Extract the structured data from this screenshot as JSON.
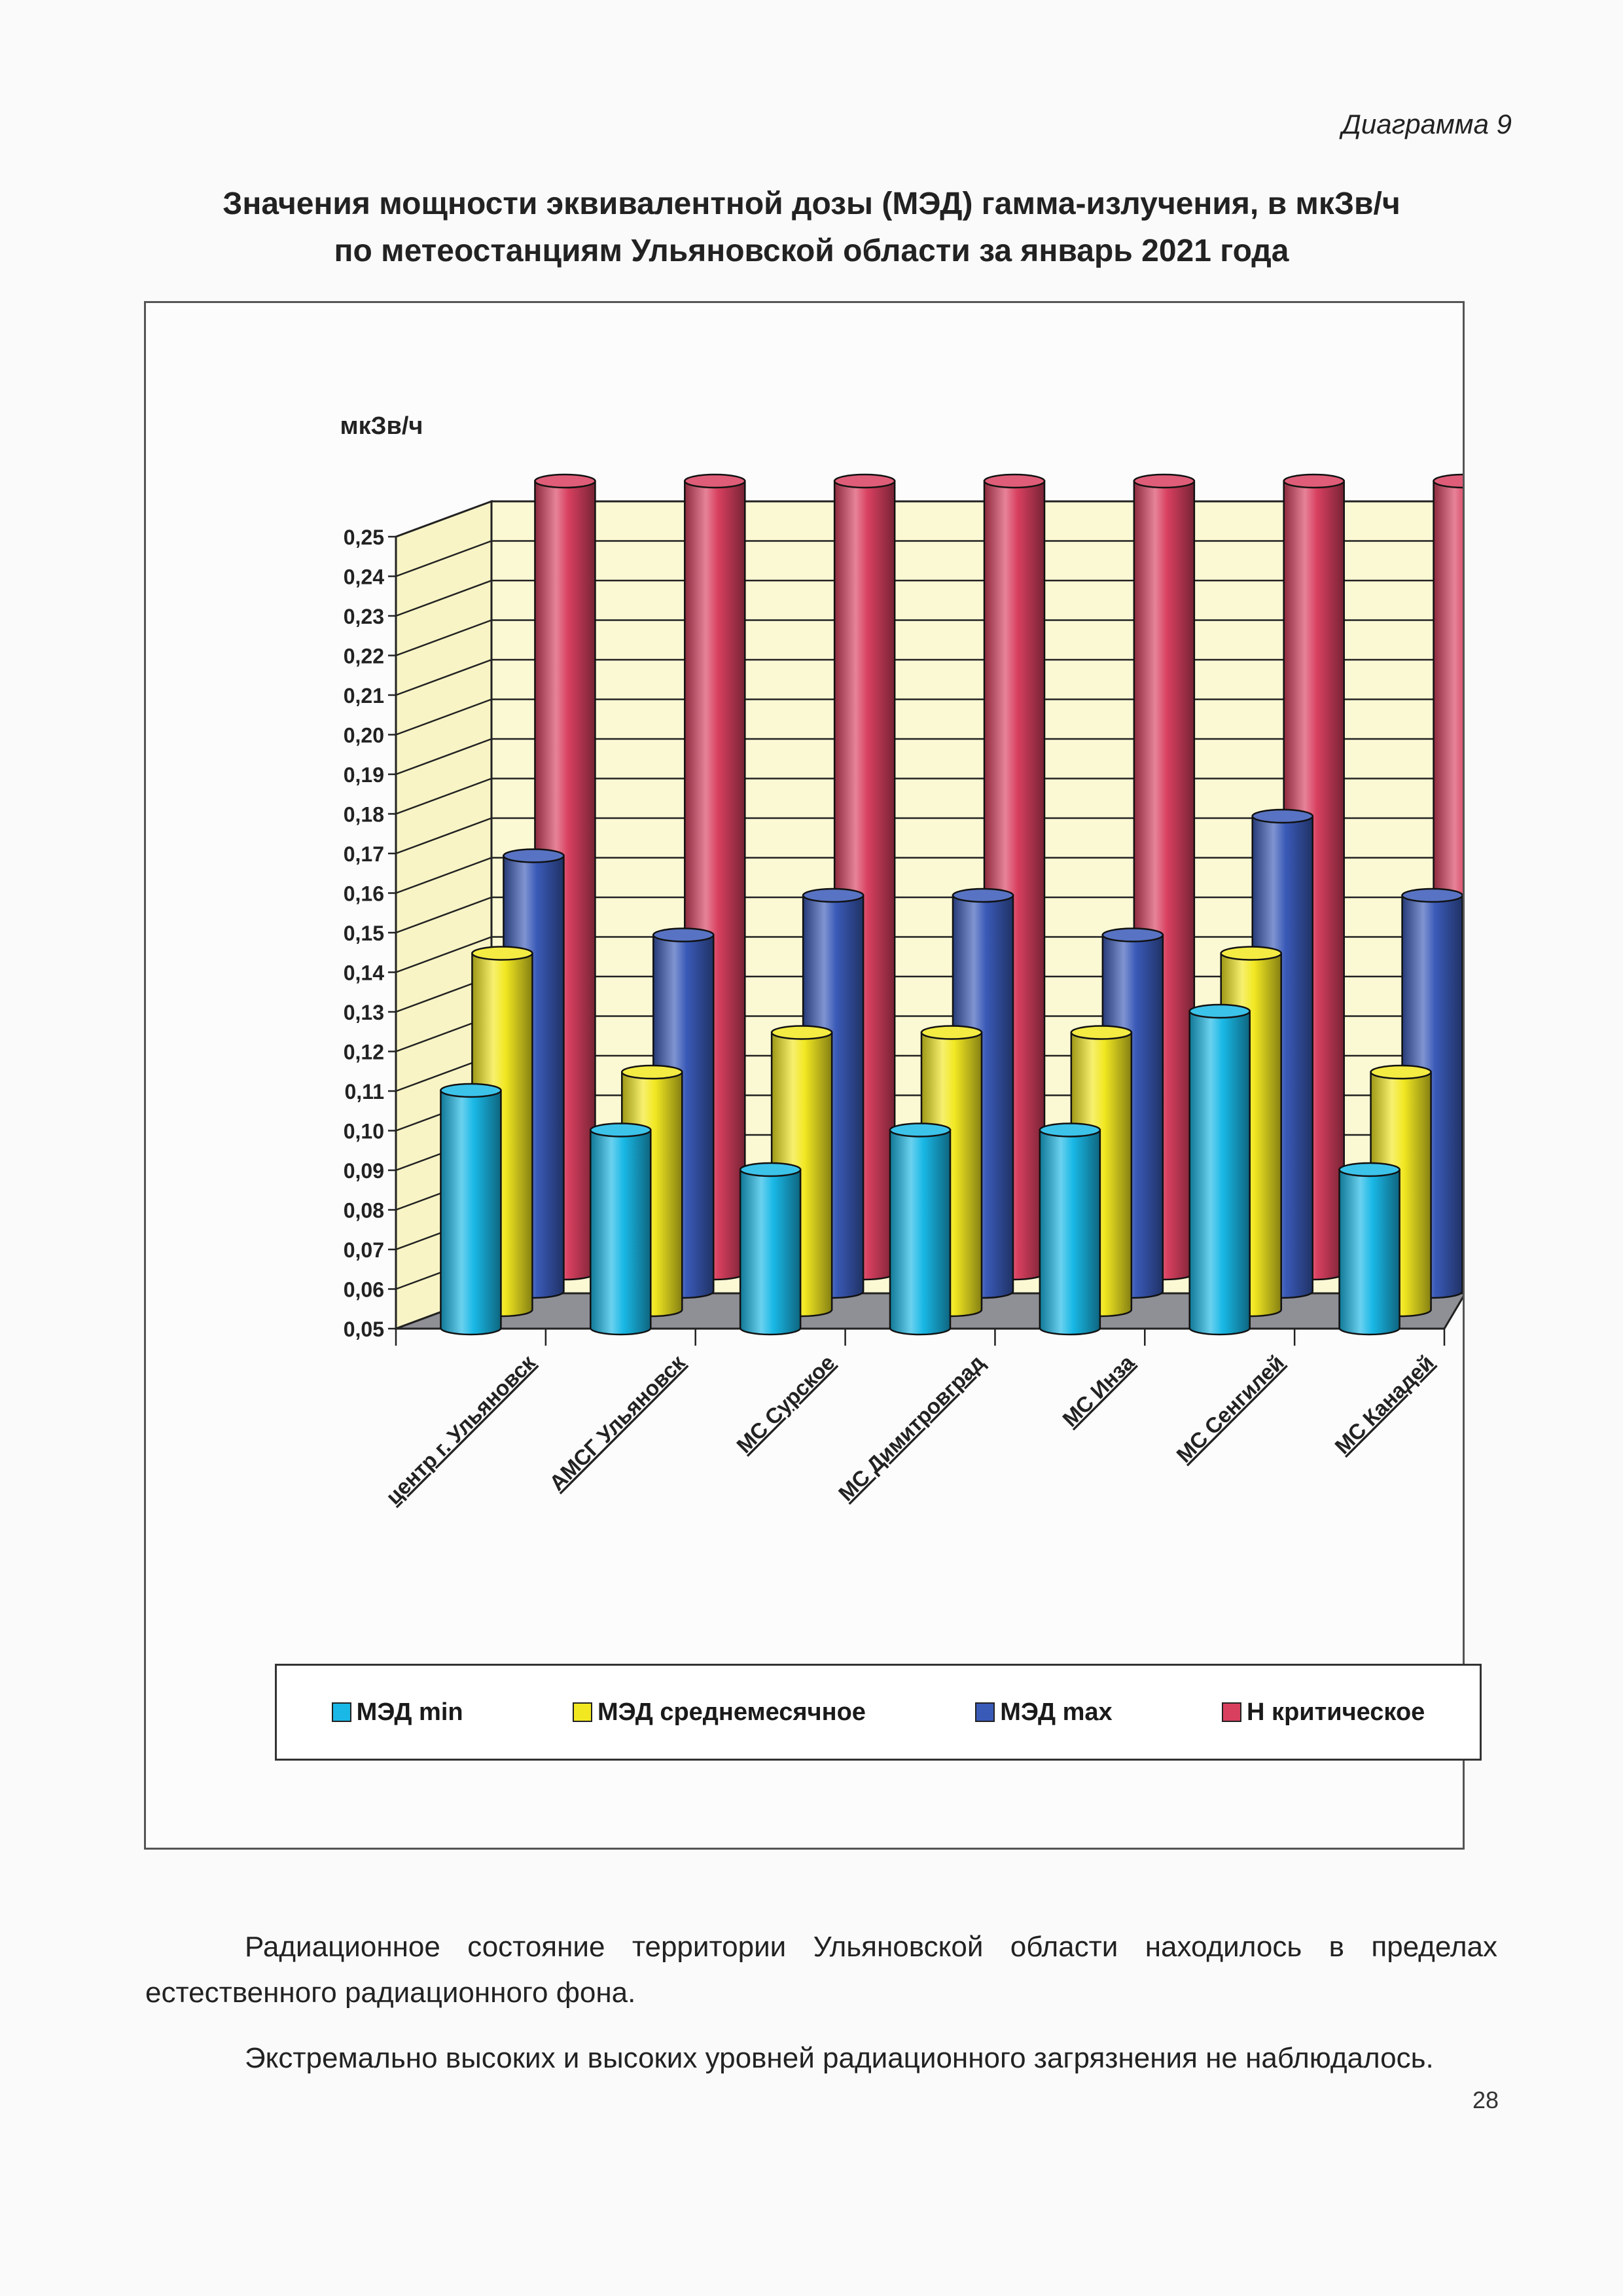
{
  "page": {
    "label": "Диаграмма 9",
    "title_line1": "Значения мощности эквивалентной дозы (МЭД) гамма-излучения, в мкЗв/ч",
    "title_line2": "по метеостанциям Ульяновской области за январь 2021 года",
    "paragraph1": "Радиационное состояние территории Ульяновской области находилось в пределах естественного радиационного фона.",
    "paragraph2": "Экстремально высоких и высоких уровней радиационного загрязнения не наблюдалось.",
    "page_number": "28"
  },
  "chart_data": {
    "type": "bar",
    "style": "3d-cylinder",
    "ylabel": "мкЗв/ч",
    "ylim": [
      0.05,
      0.25
    ],
    "ytick_step": 0.01,
    "ytick_labels": [
      "0,05",
      "0,06",
      "0,07",
      "0,08",
      "0,09",
      "0,10",
      "0,11",
      "0,12",
      "0,13",
      "0,14",
      "0,15",
      "0,16",
      "0,17",
      "0,18",
      "0,19",
      "0,20",
      "0,21",
      "0,22",
      "0,23",
      "0,24",
      "0,25"
    ],
    "grid": true,
    "legend_position": "bottom",
    "categories": [
      "центр г. Ульяновск",
      "АМСГ Ульяновск",
      "МС Сурское",
      "МС Димитровград",
      "МС Инза",
      "МС Сенгилей",
      "МС Канадей"
    ],
    "series": [
      {
        "name": "МЭД min",
        "color": "#19b8e6",
        "values": [
          0.11,
          0.1,
          0.09,
          0.1,
          0.1,
          0.13,
          0.09
        ]
      },
      {
        "name": "МЭД среднемесячное",
        "color": "#f2e822",
        "values": [
          0.14,
          0.11,
          0.12,
          0.12,
          0.12,
          0.14,
          0.11
        ]
      },
      {
        "name": "МЭД max",
        "color": "#3a5ab8",
        "values": [
          0.16,
          0.14,
          0.15,
          0.15,
          0.14,
          0.17,
          0.15
        ]
      },
      {
        "name": "Н критическое",
        "color": "#d94060",
        "values": [
          0.25,
          0.25,
          0.25,
          0.25,
          0.25,
          0.25,
          0.25
        ]
      }
    ]
  }
}
